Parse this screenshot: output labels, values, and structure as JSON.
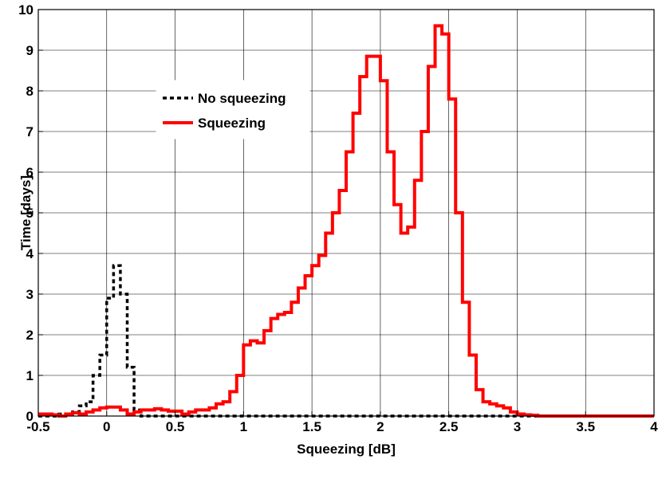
{
  "chart_data": {
    "type": "line",
    "xlabel": "Squeezing [dB]",
    "ylabel": "Time [days]",
    "xlim": [
      -0.5,
      4
    ],
    "ylim": [
      0,
      10
    ],
    "xticks": [
      "-0.5",
      "0",
      "0.5",
      "1",
      "1.5",
      "2",
      "2.5",
      "3",
      "3.5",
      "4"
    ],
    "yticks": [
      "0",
      "1",
      "2",
      "3",
      "4",
      "5",
      "6",
      "7",
      "8",
      "9",
      "10"
    ],
    "grid": true,
    "legend_position": "upper-left-inside",
    "bin_width": 0.05,
    "series": [
      {
        "name": "No squeezing",
        "style": "dashed",
        "color": "#000000",
        "bin_starts": [
          -0.5,
          -0.45,
          -0.4,
          -0.35,
          -0.3,
          -0.25,
          -0.2,
          -0.15,
          -0.1,
          -0.05,
          0.0,
          0.05,
          0.1,
          0.15,
          0.2,
          0.25,
          4.0
        ],
        "values": [
          0.0,
          0.0,
          0.0,
          0.05,
          0.05,
          0.1,
          0.25,
          0.35,
          1.0,
          1.5,
          2.9,
          3.7,
          3.0,
          1.2,
          0.15,
          0.0,
          0.0
        ]
      },
      {
        "name": "Squeezing",
        "style": "solid",
        "color": "#ff0000",
        "bin_starts": [
          -0.5,
          -0.4,
          -0.35,
          -0.3,
          -0.25,
          -0.2,
          -0.15,
          -0.1,
          -0.05,
          0.0,
          0.05,
          0.1,
          0.15,
          0.2,
          0.25,
          0.3,
          0.35,
          0.4,
          0.45,
          0.5,
          0.55,
          0.6,
          0.65,
          0.7,
          0.75,
          0.8,
          0.85,
          0.9,
          0.95,
          1.0,
          1.05,
          1.1,
          1.15,
          1.2,
          1.25,
          1.3,
          1.35,
          1.4,
          1.45,
          1.5,
          1.55,
          1.6,
          1.65,
          1.7,
          1.75,
          1.8,
          1.85,
          1.9,
          1.95,
          2.0,
          2.05,
          2.1,
          2.15,
          2.2,
          2.25,
          2.3,
          2.35,
          2.4,
          2.45,
          2.5,
          2.55,
          2.6,
          2.65,
          2.7,
          2.75,
          2.8,
          2.85,
          2.9,
          2.95,
          3.0,
          3.05,
          3.1,
          3.15,
          3.2,
          3.25,
          3.3,
          3.35,
          3.4,
          3.45,
          3.5,
          4.0
        ],
        "values": [
          0.05,
          0.03,
          0.0,
          0.05,
          0.08,
          0.05,
          0.1,
          0.15,
          0.2,
          0.22,
          0.22,
          0.15,
          0.05,
          0.1,
          0.15,
          0.15,
          0.18,
          0.15,
          0.12,
          0.12,
          0.05,
          0.1,
          0.15,
          0.15,
          0.2,
          0.3,
          0.35,
          0.6,
          1.0,
          1.75,
          1.85,
          1.8,
          2.1,
          2.4,
          2.5,
          2.55,
          2.8,
          3.15,
          3.45,
          3.7,
          3.95,
          4.5,
          5.0,
          5.55,
          6.5,
          7.45,
          8.35,
          8.85,
          8.85,
          8.25,
          6.5,
          5.2,
          4.5,
          4.65,
          5.8,
          7.0,
          8.6,
          9.6,
          9.4,
          7.8,
          5.0,
          2.8,
          1.5,
          0.65,
          0.35,
          0.3,
          0.25,
          0.2,
          0.1,
          0.05,
          0.03,
          0.02,
          0.0,
          0.0,
          0.0,
          0.0,
          0.0,
          0.0,
          0.0,
          0.0,
          0.0
        ]
      }
    ]
  }
}
